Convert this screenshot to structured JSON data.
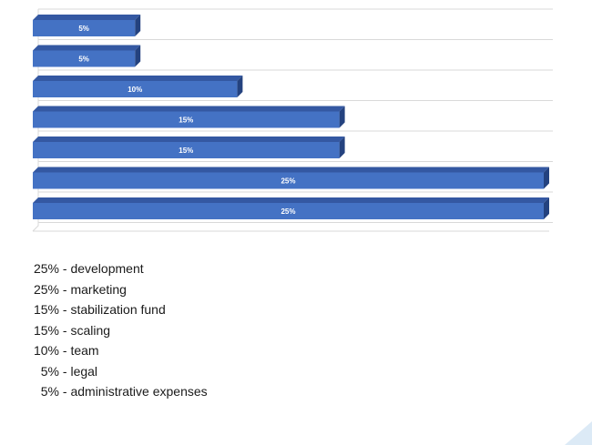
{
  "chart_data": {
    "type": "bar",
    "orientation": "horizontal",
    "values": [
      5,
      5,
      10,
      15,
      15,
      25,
      25
    ],
    "data_labels": [
      "5%",
      "5%",
      "10%",
      "15%",
      "15%",
      "25%",
      "25%"
    ],
    "xlim": [
      0,
      25
    ],
    "grid": true,
    "colors": {
      "bar_face": "#4472C4",
      "bar_top": "#3458A2",
      "bar_side": "#24427F",
      "grid": "#D9D9D9",
      "label": "#ffffff"
    }
  },
  "legend_list": [
    {
      "percent": "25%",
      "separator": " - ",
      "label": "development"
    },
    {
      "percent": "25%",
      "separator": " - ",
      "label": "marketing"
    },
    {
      "percent": "15%",
      "separator": " - ",
      "label": "stabilization fund"
    },
    {
      "percent": "15%",
      "separator": " - ",
      "label": "scaling"
    },
    {
      "percent": "10%",
      "separator": " - ",
      "label": "team"
    },
    {
      "percent": "5%",
      "separator": " - ",
      "label": "legal"
    },
    {
      "percent": "5%",
      "separator": " - ",
      "label": "administrative expenses"
    }
  ],
  "decor": {
    "corner_color": "#DCEAF6"
  }
}
